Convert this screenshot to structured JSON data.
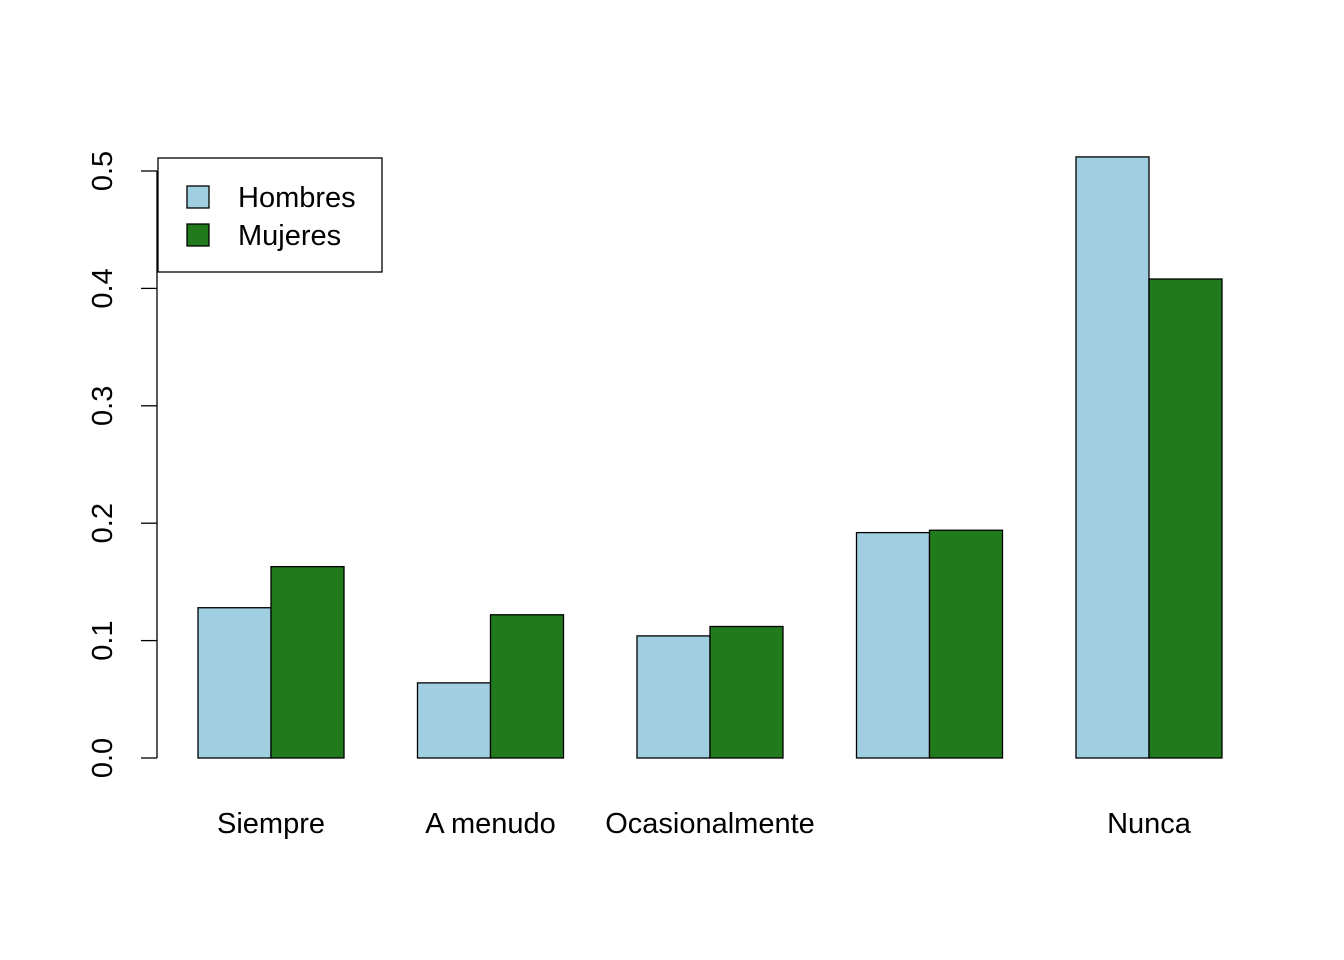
{
  "chart_data": {
    "type": "bar",
    "categories": [
      "Siempre",
      "A menudo",
      "Ocasionalmente",
      "",
      "Nunca"
    ],
    "series": [
      {
        "name": "Hombres",
        "color": "#a0cfe1",
        "values": [
          0.128,
          0.064,
          0.104,
          0.192,
          0.512
        ]
      },
      {
        "name": "Mujeres",
        "color": "#217b1d",
        "values": [
          0.163,
          0.122,
          0.112,
          0.194,
          0.408
        ]
      }
    ],
    "yticks": [
      "0.0",
      "0.1",
      "0.2",
      "0.3",
      "0.4",
      "0.5"
    ],
    "ylim": [
      0,
      0.5
    ],
    "legend": "top-left",
    "grid": false,
    "title": "",
    "xlabel": "",
    "ylabel": ""
  }
}
